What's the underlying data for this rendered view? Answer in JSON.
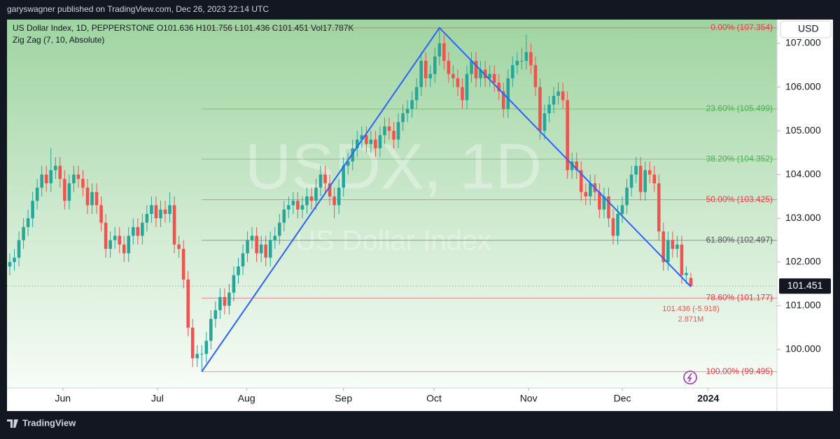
{
  "chart_data": {
    "type": "candlestick",
    "attribution": "garyswagner published on TradingView.com, Dec 26, 2023 22:14 UTC",
    "title": "US Dollar Index, 1D, PEPPERSTONE  O101.636  H101.756  L101.436  C101.451  Vol17.787K",
    "indicator": "Zig Zag (7, 10, Absolute)",
    "watermark": "USDX, 1D",
    "watermark_subtitle": "US Dollar Index",
    "currency": "USD",
    "footer": "TradingView",
    "up_color": "#26a69a",
    "down_color": "#ef5350",
    "open": [
      101.9,
      102.0,
      102.1,
      102.5,
      102.8,
      103.0,
      103.4,
      103.7,
      104.0,
      103.8,
      104.1,
      104.2,
      103.9,
      103.4,
      103.8,
      104.0,
      103.9,
      103.7,
      103.3,
      103.6,
      103.3,
      102.9,
      102.3,
      102.5,
      102.6,
      102.4,
      102.2,
      102.6,
      102.8,
      102.6,
      102.9,
      103.1,
      103.3,
      103.0,
      103.2,
      103.1,
      103.3,
      102.4,
      102.3,
      101.6,
      100.5,
      99.8,
      99.9,
      99.9,
      100.2,
      100.7,
      100.9,
      101.2,
      101.0,
      101.3,
      101.7,
      101.9,
      102.2,
      102.5,
      102.6,
      102.2,
      102.4,
      102.1,
      102.5,
      102.6,
      102.9,
      103.2,
      103.3,
      103.4,
      103.2,
      103.3,
      103.5,
      103.4,
      103.7,
      104.0,
      103.8,
      103.5,
      103.3,
      103.7,
      104.2,
      104.3,
      104.6,
      104.8,
      104.9,
      104.7,
      104.8,
      104.6,
      104.9,
      105.1,
      105.0,
      104.8,
      105.2,
      105.4,
      105.5,
      105.7,
      106.0,
      106.6,
      106.2,
      106.3,
      106.7,
      107.0,
      106.6,
      106.3,
      106.2,
      106.0,
      105.7,
      106.3,
      106.6,
      106.2,
      106.4,
      106.2,
      106.3,
      106.1,
      105.9,
      105.5,
      106.2,
      106.5,
      106.6,
      106.6,
      106.8,
      106.5,
      106.0,
      105.0,
      105.4,
      105.6,
      105.8,
      105.9,
      105.7,
      104.1,
      104.3,
      104.1,
      103.6,
      103.5,
      103.8,
      103.6,
      103.2,
      103.5,
      103.0,
      102.6,
      103.1,
      103.3,
      103.7,
      104.0,
      104.2,
      103.6,
      104.1,
      104.0,
      103.8,
      102.7,
      102.0,
      102.5,
      102.3,
      102.4,
      101.7,
      101.636
    ],
    "high": [
      102.2,
      102.3,
      102.7,
      103.0,
      103.2,
      103.6,
      103.9,
      104.2,
      104.2,
      104.6,
      104.4,
      104.4,
      104.1,
      104.0,
      104.2,
      104.2,
      104.1,
      103.9,
      103.8,
      103.8,
      103.5,
      103.1,
      102.7,
      102.8,
      102.8,
      102.6,
      102.8,
      103.0,
      103.0,
      103.1,
      103.3,
      103.5,
      103.5,
      103.4,
      103.4,
      103.6,
      103.5,
      102.6,
      102.5,
      101.8,
      100.7,
      100.1,
      100.1,
      100.4,
      100.9,
      101.1,
      101.4,
      101.4,
      101.5,
      101.9,
      102.1,
      102.4,
      102.7,
      102.8,
      102.8,
      102.6,
      102.6,
      102.7,
      102.8,
      103.1,
      103.4,
      103.5,
      103.6,
      103.6,
      103.5,
      103.7,
      103.7,
      103.9,
      104.2,
      104.2,
      104.0,
      103.7,
      103.9,
      104.4,
      104.5,
      104.8,
      105.0,
      105.1,
      105.1,
      105.0,
      105.0,
      105.1,
      105.3,
      105.3,
      105.2,
      105.4,
      105.6,
      105.7,
      105.9,
      106.2,
      106.8,
      106.8,
      106.5,
      106.9,
      107.354,
      107.2,
      106.8,
      106.5,
      106.4,
      106.2,
      106.5,
      106.8,
      106.8,
      106.6,
      106.6,
      106.5,
      106.5,
      106.3,
      106.1,
      106.4,
      106.7,
      106.8,
      106.9,
      107.2,
      107.0,
      106.7,
      106.2,
      105.6,
      105.8,
      106.0,
      106.1,
      106.1,
      105.9,
      104.5,
      104.5,
      104.3,
      103.8,
      104.0,
      104.0,
      103.8,
      103.7,
      103.7,
      103.2,
      103.3,
      103.5,
      103.9,
      104.2,
      104.4,
      104.4,
      104.3,
      104.3,
      104.2,
      104.0,
      102.9,
      102.7,
      102.7,
      102.6,
      102.6,
      101.9,
      101.756
    ],
    "low": [
      101.7,
      101.8,
      101.9,
      102.3,
      102.6,
      102.8,
      103.2,
      103.5,
      103.6,
      103.6,
      103.9,
      103.7,
      103.2,
      103.2,
      103.6,
      103.7,
      103.5,
      103.1,
      103.1,
      103.1,
      102.7,
      102.1,
      102.1,
      102.3,
      102.2,
      102.0,
      102.0,
      102.4,
      102.4,
      102.4,
      102.7,
      102.9,
      102.8,
      102.8,
      102.9,
      102.9,
      102.2,
      102.1,
      101.4,
      100.3,
      99.6,
      99.6,
      99.495,
      99.7,
      100.0,
      100.5,
      100.7,
      100.8,
      100.8,
      101.1,
      101.5,
      101.7,
      102.0,
      102.3,
      102.0,
      102.0,
      101.9,
      101.9,
      102.3,
      102.4,
      102.7,
      103.0,
      103.1,
      103.0,
      103.0,
      103.1,
      103.2,
      103.2,
      103.5,
      103.6,
      103.3,
      103.0,
      103.1,
      103.5,
      104.0,
      104.1,
      104.4,
      104.6,
      104.5,
      104.5,
      104.4,
      104.4,
      104.7,
      104.8,
      104.6,
      104.6,
      105.0,
      105.2,
      105.3,
      105.5,
      105.8,
      106.0,
      106.0,
      106.1,
      106.5,
      106.4,
      106.1,
      106.0,
      105.8,
      105.5,
      105.5,
      106.1,
      106.0,
      106.0,
      106.0,
      106.0,
      105.9,
      105.7,
      105.3,
      105.3,
      106.0,
      106.3,
      106.4,
      106.4,
      106.3,
      105.8,
      104.8,
      104.8,
      105.2,
      105.4,
      105.6,
      105.5,
      103.9,
      103.9,
      103.9,
      103.4,
      103.3,
      103.3,
      103.4,
      103.0,
      103.0,
      102.8,
      102.4,
      102.4,
      102.9,
      103.1,
      103.5,
      103.8,
      103.4,
      103.4,
      103.8,
      103.6,
      102.5,
      101.8,
      101.8,
      102.1,
      102.1,
      101.5,
      101.5,
      101.436
    ],
    "close": [
      102.0,
      102.1,
      102.5,
      102.8,
      103.0,
      103.4,
      103.7,
      104.0,
      103.8,
      104.1,
      104.2,
      103.9,
      103.4,
      103.8,
      104.0,
      103.9,
      103.7,
      103.3,
      103.6,
      103.3,
      102.9,
      102.3,
      102.5,
      102.6,
      102.4,
      102.2,
      102.6,
      102.8,
      102.6,
      102.9,
      103.1,
      103.3,
      103.0,
      103.2,
      103.1,
      103.3,
      102.4,
      102.3,
      101.6,
      100.5,
      99.8,
      99.9,
      99.9,
      100.2,
      100.7,
      100.9,
      101.2,
      101.0,
      101.3,
      101.7,
      101.9,
      102.2,
      102.5,
      102.6,
      102.2,
      102.4,
      102.1,
      102.5,
      102.6,
      102.9,
      103.2,
      103.3,
      103.4,
      103.2,
      103.3,
      103.5,
      103.4,
      103.7,
      104.0,
      103.8,
      103.5,
      103.3,
      103.7,
      104.2,
      104.3,
      104.6,
      104.8,
      104.9,
      104.7,
      104.8,
      104.6,
      104.9,
      105.1,
      105.0,
      104.8,
      105.2,
      105.4,
      105.5,
      105.7,
      106.0,
      106.6,
      106.2,
      106.3,
      106.7,
      107.0,
      106.6,
      106.3,
      106.2,
      106.0,
      105.7,
      106.3,
      106.6,
      106.2,
      106.4,
      106.2,
      106.3,
      106.1,
      105.9,
      105.5,
      106.2,
      106.5,
      106.6,
      106.6,
      106.8,
      106.5,
      106.0,
      105.0,
      105.4,
      105.6,
      105.8,
      105.9,
      105.7,
      104.1,
      104.3,
      104.1,
      103.6,
      103.5,
      103.8,
      103.6,
      103.2,
      103.5,
      103.0,
      102.6,
      103.1,
      103.3,
      103.7,
      104.0,
      104.2,
      103.6,
      104.1,
      104.0,
      103.8,
      102.7,
      102.0,
      102.5,
      102.3,
      102.4,
      101.7,
      101.75,
      101.451
    ],
    "xlim": [
      -0.61,
      167.84
    ],
    "xticks": [
      {
        "value": 11.6,
        "label": "Jun"
      },
      {
        "value": 32.3,
        "label": "Jul"
      },
      {
        "value": 51.8,
        "label": "Aug"
      },
      {
        "value": 73.0,
        "label": "Sep"
      },
      {
        "value": 92.8,
        "label": "Oct"
      },
      {
        "value": 113.5,
        "label": "Nov"
      },
      {
        "value": 134.0,
        "label": "Dec"
      },
      {
        "value": 152.8,
        "label": "2024"
      }
    ],
    "ylim": [
      99.121,
      107.543
    ],
    "yticks": [
      {
        "value": 100,
        "label": "100.000"
      },
      {
        "value": 101,
        "label": "101.000"
      },
      {
        "value": 102,
        "label": "102.000"
      },
      {
        "value": 103,
        "label": "103.000"
      },
      {
        "value": 104,
        "label": "104.000"
      },
      {
        "value": 105,
        "label": "105.000"
      },
      {
        "value": 106,
        "label": "106.000"
      },
      {
        "value": 107,
        "label": "107.000"
      }
    ],
    "last_price": 101.451,
    "zigzag": {
      "color": "#2962ff",
      "x": [
        42,
        94,
        149
      ],
      "y": [
        99.495,
        107.354,
        101.436
      ],
      "end_labels": [
        "101.436 (-5.918)",
        "2.871M"
      ]
    },
    "fib_levels": [
      {
        "label": "0.00% (107.354)",
        "value": 107.354,
        "color": "#f23645"
      },
      {
        "label": "23.60% (105.499)",
        "value": 105.499,
        "color": "#4caf50"
      },
      {
        "label": "38.20% (104.352)",
        "value": 104.352,
        "color": "#4caf50"
      },
      {
        "label": "50.00% (103.425)",
        "value": 103.425,
        "color": "#f23645"
      },
      {
        "label": "61.80% (102.497)",
        "value": 102.497,
        "color": "#555555"
      },
      {
        "label": "78.60% (101.177)",
        "value": 101.177,
        "color": "#f23645"
      },
      {
        "label": "100.00% (99.495)",
        "value": 99.495,
        "color": "#f23645"
      }
    ]
  }
}
